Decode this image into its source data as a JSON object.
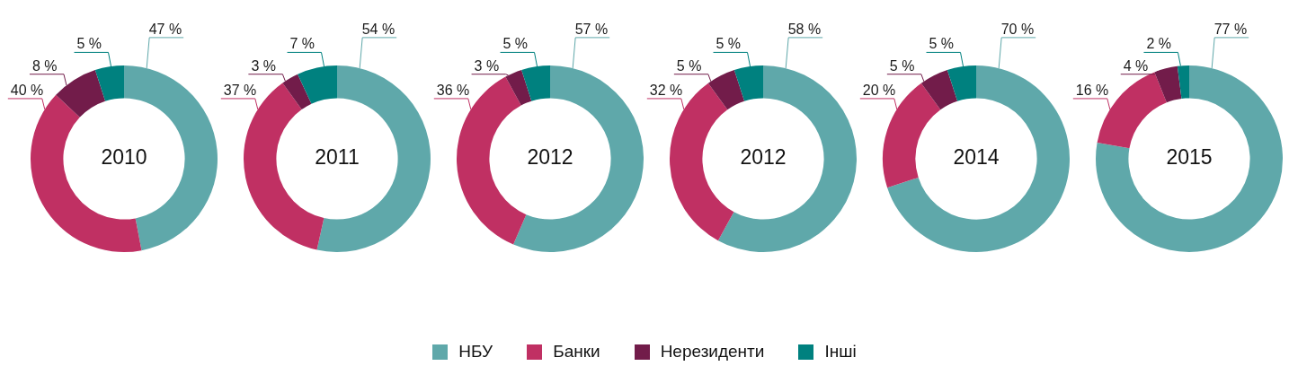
{
  "chart_data": [
    {
      "type": "donut",
      "title": "2010",
      "categories": [
        "НБУ",
        "Банки",
        "Нерезиденти",
        "Інші"
      ],
      "values": [
        47,
        40,
        8,
        5
      ],
      "colors": [
        "#5fa8aa",
        "#c03063",
        "#721c4a",
        "#00817f"
      ],
      "value_labels": [
        "47 %",
        "40 %",
        "8 %",
        "5 %"
      ],
      "legend": "bottom"
    },
    {
      "type": "donut",
      "title": "2011",
      "categories": [
        null,
        null,
        null,
        null
      ],
      "values": [
        54,
        37,
        3,
        7
      ],
      "colors": [
        "#5fa8aa",
        "#c03063",
        "#721c4a",
        "#00817f"
      ],
      "value_labels": [
        "54 %",
        "37 %",
        "3 %",
        "7 %"
      ]
    },
    {
      "type": "donut",
      "title": "2012",
      "categories": [
        null,
        null,
        null,
        null
      ],
      "values": [
        57,
        36,
        3,
        5
      ],
      "colors": [
        "#5fa8aa",
        "#c03063",
        "#721c4a",
        "#00817f"
      ],
      "value_labels": [
        "57 %",
        "36 %",
        "3 %",
        "5 %"
      ]
    },
    {
      "type": "donut",
      "title": "2012",
      "categories": [
        null,
        null,
        null,
        null
      ],
      "values": [
        58,
        32,
        5,
        5
      ],
      "colors": [
        "#5fa8aa",
        "#c03063",
        "#721c4a",
        "#00817f"
      ],
      "value_labels": [
        "58 %",
        "32 %",
        "5 %",
        "5 %"
      ]
    },
    {
      "type": "donut",
      "title": "2014",
      "categories": [
        null,
        null,
        null,
        null
      ],
      "values": [
        70,
        20,
        5,
        5
      ],
      "colors": [
        "#5fa8aa",
        "#c03063",
        "#721c4a",
        "#00817f"
      ],
      "value_labels": [
        "70 %",
        "20 %",
        "5 %",
        "5 %"
      ]
    },
    {
      "type": "donut",
      "title": "2015",
      "categories": [
        null,
        null,
        null,
        null
      ],
      "values": [
        77,
        16,
        4,
        2
      ],
      "colors": [
        "#5fa8aa",
        "#c03063",
        "#721c4a",
        "#00817f"
      ],
      "value_labels": [
        "77 %",
        "16 %",
        "4 %",
        "2 %"
      ]
    }
  ]
}
